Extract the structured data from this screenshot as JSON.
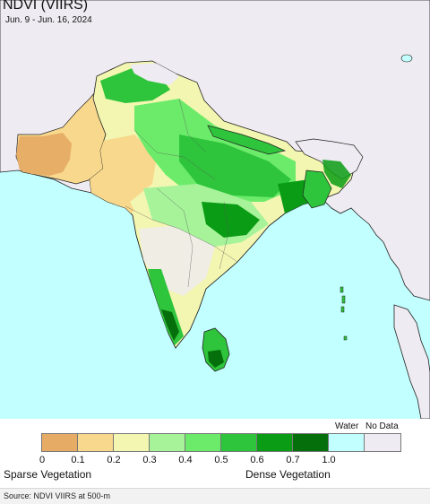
{
  "title": "NDVI (VIIRS)",
  "date_range": "Jun. 9 - Jun. 16, 2024",
  "legend": {
    "water_label": "Water",
    "nodata_label": "No Data",
    "ticks": [
      "0",
      "0.1",
      "0.2",
      "0.3",
      "0.4",
      "0.5",
      "0.6",
      "0.7",
      "1.0"
    ],
    "colors": [
      "#e6ac66",
      "#f8d88c",
      "#f3f6b0",
      "#a6f39a",
      "#6ceb6a",
      "#2ec43b",
      "#0a9c14",
      "#056f0b",
      "#c2ffff",
      "#efebf2"
    ],
    "sparse_label": "Sparse Vegetation",
    "dense_label": "Dense Vegetation"
  },
  "colors": {
    "ocean": "#c2ffff",
    "no_data_land": "#efebf2",
    "border": "#222222",
    "low_ndvi": "#f8d88c",
    "bare": "#e6ac66",
    "mid_ndvi": "#6ceb6a",
    "high_ndvi": "#0a9c14"
  },
  "source": "Source: NDVI VIIRS at 500-m"
}
